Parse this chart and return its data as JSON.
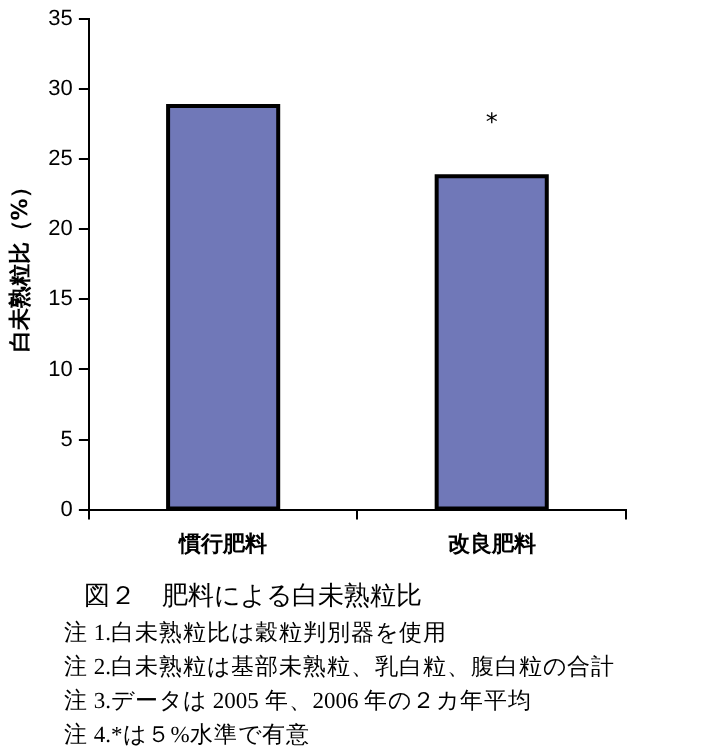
{
  "chart_data": {
    "type": "bar",
    "title": "図２　肥料による白未熟粒比",
    "ylabel": "白未熟粒比（%）",
    "categories": [
      "慣行肥料",
      "改良肥料"
    ],
    "values": [
      28.8,
      23.8
    ],
    "value_labels": [
      null,
      "*"
    ],
    "color": "#7078b8",
    "ylim": [
      0,
      35
    ],
    "yticks": [
      0,
      5,
      10,
      15,
      20,
      25,
      30,
      35
    ],
    "grid": false,
    "legend": false,
    "annotations": [
      "注 1.白未熟粒比は穀粒判別器を使用",
      "注 2.白未熟粒は基部未熟粒、乳白粒、腹白粒の合計",
      "注 3.データは 2005 年、2006 年の２カ年平均",
      "注 4.*は５%水準で有意"
    ]
  }
}
